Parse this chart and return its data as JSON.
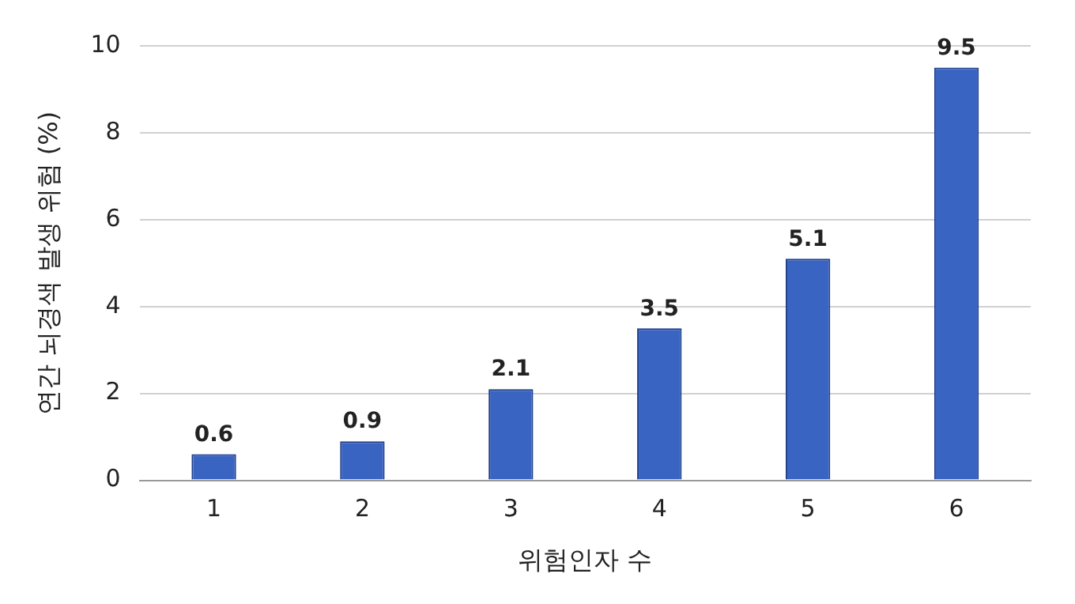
{
  "chart_data": {
    "type": "bar",
    "xlabel": "위험인자 수",
    "ylabel": "연간 뇌경색 발생 위험 (%)",
    "categories": [
      "1",
      "2",
      "3",
      "4",
      "5",
      "6"
    ],
    "values": [
      0.6,
      0.9,
      2.1,
      3.5,
      5.1,
      9.5
    ],
    "color": "#3a64c2",
    "ylim": [
      0,
      10
    ],
    "yticks": [
      0,
      2,
      4,
      6,
      8,
      10
    ],
    "grid": "y",
    "data_labels": true,
    "legend": false
  }
}
